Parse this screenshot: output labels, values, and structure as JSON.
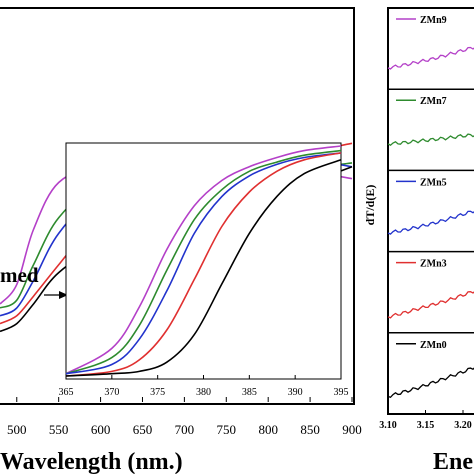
{
  "chart_data": [
    {
      "type": "line",
      "xlabel": "Wavelength (nm.)",
      "x_ticks": [
        "500",
        "550",
        "600",
        "650",
        "700",
        "750",
        "800",
        "850",
        "900"
      ],
      "xlim": [
        480,
        900
      ],
      "ylim": [
        0,
        1
      ],
      "annotation": "med",
      "grid": false,
      "series": [
        {
          "name": "ZMn9",
          "color": "#b440c8",
          "x": [
            480,
            500,
            520,
            550,
            600,
            650,
            700,
            750,
            800,
            850,
            900
          ],
          "y": [
            0.25,
            0.3,
            0.44,
            0.56,
            0.6,
            0.57,
            0.63,
            0.66,
            0.62,
            0.59,
            0.57
          ]
        },
        {
          "name": "ZMn7",
          "color": "#2e8b2e",
          "x": [
            480,
            500,
            520,
            550,
            600,
            650,
            700,
            750,
            800,
            850,
            900
          ],
          "y": [
            0.24,
            0.26,
            0.35,
            0.47,
            0.56,
            0.55,
            0.6,
            0.64,
            0.62,
            0.6,
            0.61
          ]
        },
        {
          "name": "ZMn5",
          "color": "#2233cc",
          "x": [
            480,
            500,
            520,
            550,
            600,
            650,
            700,
            750,
            800,
            850,
            900
          ],
          "y": [
            0.22,
            0.24,
            0.31,
            0.43,
            0.54,
            0.57,
            0.56,
            0.62,
            0.64,
            0.62,
            0.6
          ]
        },
        {
          "name": "ZMn3",
          "color": "#e03030",
          "x": [
            480,
            500,
            520,
            550,
            600,
            650,
            700,
            750,
            800,
            850,
            900
          ],
          "y": [
            0.2,
            0.22,
            0.27,
            0.35,
            0.48,
            0.58,
            0.55,
            0.6,
            0.63,
            0.64,
            0.66
          ]
        },
        {
          "name": "ZMn0",
          "color": "#000000",
          "x": [
            480,
            500,
            520,
            550,
            600,
            650,
            700,
            750,
            800,
            850,
            900
          ],
          "y": [
            0.18,
            0.2,
            0.25,
            0.33,
            0.4,
            0.43,
            0.44,
            0.48,
            0.52,
            0.56,
            0.6
          ]
        }
      ]
    },
    {
      "type": "line",
      "role": "inset",
      "x_ticks": [
        "365",
        "370",
        "375",
        "380",
        "385",
        "390",
        "395"
      ],
      "xlim": [
        365,
        395
      ],
      "ylim": [
        0,
        1
      ],
      "series": [
        {
          "name": "ZMn9",
          "color": "#b440c8",
          "x": [
            365,
            370,
            373,
            376,
            379,
            382,
            385,
            388,
            391,
            395
          ],
          "y": [
            0.01,
            0.12,
            0.3,
            0.55,
            0.74,
            0.85,
            0.91,
            0.95,
            0.98,
            1.0
          ]
        },
        {
          "name": "ZMn7",
          "color": "#2e8b2e",
          "x": [
            365,
            370,
            373,
            376,
            379,
            382,
            385,
            388,
            391,
            395
          ],
          "y": [
            0.01,
            0.08,
            0.22,
            0.46,
            0.68,
            0.81,
            0.89,
            0.93,
            0.96,
            0.98
          ]
        },
        {
          "name": "ZMn5",
          "color": "#2233cc",
          "x": [
            365,
            370,
            373,
            376,
            379,
            382,
            385,
            388,
            391,
            395
          ],
          "y": [
            0.01,
            0.05,
            0.16,
            0.37,
            0.62,
            0.78,
            0.87,
            0.92,
            0.95,
            0.97
          ]
        },
        {
          "name": "ZMn3",
          "color": "#e03030",
          "x": [
            365,
            370,
            373,
            376,
            379,
            382,
            385,
            388,
            391,
            395
          ],
          "y": [
            0.0,
            0.02,
            0.07,
            0.2,
            0.42,
            0.65,
            0.8,
            0.89,
            0.94,
            0.97
          ]
        },
        {
          "name": "ZMn0",
          "color": "#000000",
          "x": [
            365,
            370,
            373,
            376,
            379,
            382,
            385,
            388,
            391,
            395
          ],
          "y": [
            0.0,
            0.01,
            0.02,
            0.06,
            0.18,
            0.4,
            0.62,
            0.78,
            0.88,
            0.94
          ]
        }
      ]
    },
    {
      "type": "line",
      "role": "stacked-panels",
      "ylabel": "dT/d(E)",
      "xlabel": "Ene",
      "x_ticks": [
        "3.10",
        "3.15",
        "3.20"
      ],
      "xlim": [
        3.1,
        3.22
      ],
      "panels": [
        {
          "name": "ZMn9",
          "color": "#b440c8",
          "x": [
            3.1,
            3.12,
            3.14,
            3.16,
            3.18,
            3.2,
            3.22
          ],
          "y": [
            0.25,
            0.3,
            0.36,
            0.42,
            0.5,
            0.58,
            0.66
          ]
        },
        {
          "name": "ZMn7",
          "color": "#2e8b2e",
          "x": [
            3.1,
            3.12,
            3.14,
            3.16,
            3.18,
            3.2,
            3.22
          ],
          "y": [
            0.35,
            0.37,
            0.4,
            0.43,
            0.46,
            0.5,
            0.52
          ]
        },
        {
          "name": "ZMn5",
          "color": "#2233cc",
          "x": [
            3.1,
            3.12,
            3.14,
            3.16,
            3.18,
            3.2,
            3.22
          ],
          "y": [
            0.2,
            0.25,
            0.31,
            0.38,
            0.46,
            0.55,
            0.64
          ]
        },
        {
          "name": "ZMn3",
          "color": "#e03030",
          "x": [
            3.1,
            3.12,
            3.14,
            3.16,
            3.18,
            3.2,
            3.22
          ],
          "y": [
            0.15,
            0.22,
            0.3,
            0.38,
            0.46,
            0.56,
            0.66
          ]
        },
        {
          "name": "ZMn0",
          "color": "#000000",
          "x": [
            3.1,
            3.12,
            3.14,
            3.16,
            3.18,
            3.2,
            3.22
          ],
          "y": [
            0.18,
            0.26,
            0.34,
            0.44,
            0.54,
            0.64,
            0.76
          ]
        }
      ]
    }
  ]
}
